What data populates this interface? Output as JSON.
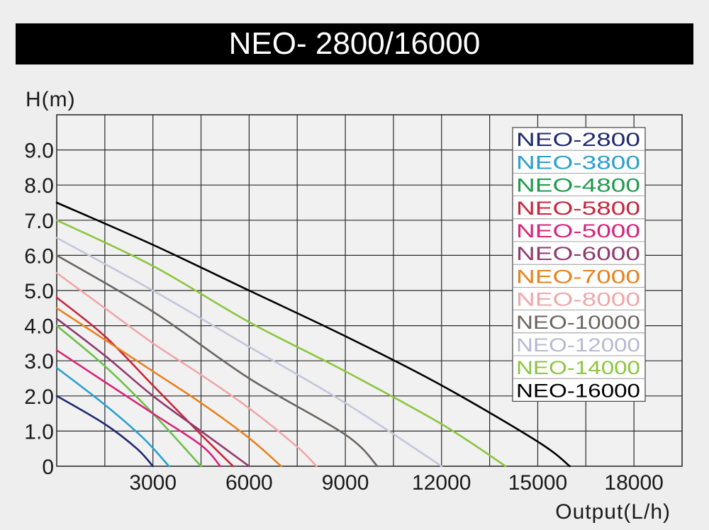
{
  "title": "NEO- 2800/16000",
  "chart_data": {
    "type": "line",
    "ylabel": "H(m)",
    "xlabel": "Output(L/h)",
    "xlim": [
      0,
      19500
    ],
    "ylim": [
      0,
      10
    ],
    "x_ticks": [
      {
        "value": 3000,
        "label": "3000"
      },
      {
        "value": 6000,
        "label": "6000"
      },
      {
        "value": 9000,
        "label": "9000"
      },
      {
        "value": 12000,
        "label": "12000"
      },
      {
        "value": 15000,
        "label": "15000"
      },
      {
        "value": 18000,
        "label": "18000"
      }
    ],
    "y_ticks": [
      {
        "value": 0,
        "label": "0"
      },
      {
        "value": 1,
        "label": "1.0"
      },
      {
        "value": 2,
        "label": "2.0"
      },
      {
        "value": 3,
        "label": "3.0"
      },
      {
        "value": 4,
        "label": "4.0"
      },
      {
        "value": 5,
        "label": "5.0"
      },
      {
        "value": 6,
        "label": "6.0"
      },
      {
        "value": 7,
        "label": "7.0"
      },
      {
        "value": 8,
        "label": "8.0"
      },
      {
        "value": 9,
        "label": "9.0"
      }
    ],
    "grid": true,
    "legend_position": "top-right",
    "series": [
      {
        "name": "NEO-2800",
        "color": "#1f2a6e",
        "label_color": "#1f2a6e",
        "x": [
          0,
          1500,
          2500,
          3000
        ],
        "y": [
          2.0,
          1.2,
          0.5,
          0
        ]
      },
      {
        "name": "NEO-3800",
        "color": "#2a9fd0",
        "label_color": "#2a9fd0",
        "x": [
          0,
          1500,
          2700,
          3500
        ],
        "y": [
          2.8,
          1.75,
          0.8,
          0
        ]
      },
      {
        "name": "NEO-4800",
        "color": "#6cc04a",
        "label_color": "#1f9a4c",
        "x": [
          0,
          1500,
          3000,
          4500
        ],
        "y": [
          4.0,
          2.85,
          1.5,
          0
        ]
      },
      {
        "name": "NEO-5800",
        "color": "#c8253a",
        "label_color": "#c8253a",
        "x": [
          0,
          1500,
          3000,
          4500,
          5500
        ],
        "y": [
          4.8,
          3.7,
          2.3,
          0.9,
          0
        ]
      },
      {
        "name": "NEO-5000",
        "color": "#d6257a",
        "label_color": "#d6257a",
        "x": [
          0,
          1500,
          3000,
          4500,
          5100
        ],
        "y": [
          3.3,
          2.4,
          1.5,
          0.6,
          0
        ]
      },
      {
        "name": "NEO-6000",
        "color": "#8e3a6e",
        "label_color": "#8e3a6e",
        "x": [
          0,
          1500,
          3000,
          4500,
          6000
        ],
        "y": [
          4.2,
          3.15,
          2.0,
          1.0,
          0
        ]
      },
      {
        "name": "NEO-7000",
        "color": "#e8821e",
        "label_color": "#e8821e",
        "x": [
          0,
          1500,
          3000,
          4500,
          6000,
          7000
        ],
        "y": [
          4.5,
          3.6,
          2.7,
          1.8,
          0.8,
          0
        ]
      },
      {
        "name": "NEO-8000",
        "color": "#f0a8a8",
        "label_color": "#f0a8a8",
        "x": [
          0,
          1500,
          3000,
          4500,
          6000,
          7500,
          8100
        ],
        "y": [
          5.5,
          4.5,
          3.5,
          2.6,
          1.65,
          0.55,
          0
        ]
      },
      {
        "name": "NEO-10000",
        "color": "#6b6560",
        "label_color": "#6b6560",
        "x": [
          0,
          3000,
          6000,
          9000,
          10000
        ],
        "y": [
          6.0,
          4.4,
          2.5,
          0.9,
          0
        ]
      },
      {
        "name": "NEO-12000",
        "color": "#c5c5dc",
        "label_color": "#b8b8d4",
        "x": [
          0,
          3000,
          6000,
          9000,
          12000
        ],
        "y": [
          6.5,
          5.0,
          3.4,
          1.8,
          0
        ]
      },
      {
        "name": "NEO-14000",
        "color": "#8cc63f",
        "label_color": "#8cc63f",
        "x": [
          0,
          3000,
          6000,
          9000,
          12000,
          14000
        ],
        "y": [
          7.0,
          5.7,
          4.1,
          2.7,
          1.2,
          0
        ]
      },
      {
        "name": "NEO-16000",
        "color": "#000000",
        "label_color": "#000000",
        "x": [
          0,
          3000,
          6000,
          9000,
          12000,
          15000,
          16000
        ],
        "y": [
          7.5,
          6.3,
          5.0,
          3.7,
          2.3,
          0.7,
          0
        ]
      }
    ]
  }
}
